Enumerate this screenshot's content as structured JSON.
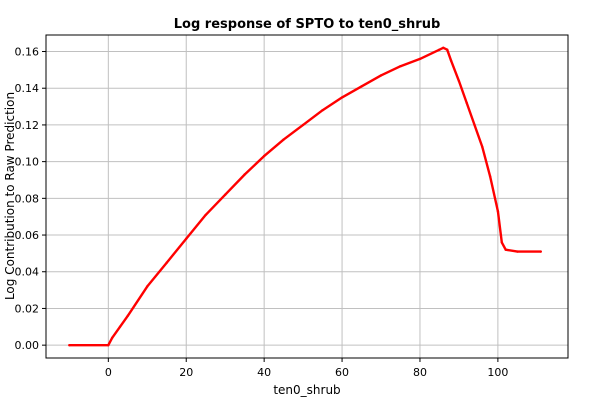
{
  "chart_data": {
    "type": "line",
    "title": "Log response of SPTO to ten0_shrub",
    "xlabel": "ten0_shrub",
    "ylabel": "Log Contribution to Raw Prediction",
    "xlim": [
      -16,
      118
    ],
    "ylim": [
      -0.007,
      0.169
    ],
    "xticks": [
      0,
      20,
      40,
      60,
      80,
      100
    ],
    "yticks": [
      0.0,
      0.02,
      0.04,
      0.06,
      0.08,
      0.1,
      0.12,
      0.14,
      0.16
    ],
    "grid": true,
    "legend": "none",
    "series": [
      {
        "color": "#ff0000",
        "points": [
          [
            -10,
            0.0
          ],
          [
            0,
            0.0
          ],
          [
            1,
            0.004
          ],
          [
            3,
            0.01
          ],
          [
            5,
            0.016
          ],
          [
            10,
            0.032
          ],
          [
            15,
            0.045
          ],
          [
            20,
            0.058
          ],
          [
            25,
            0.071
          ],
          [
            30,
            0.082
          ],
          [
            35,
            0.093
          ],
          [
            40,
            0.103
          ],
          [
            45,
            0.112
          ],
          [
            50,
            0.12
          ],
          [
            55,
            0.128
          ],
          [
            60,
            0.135
          ],
          [
            65,
            0.141
          ],
          [
            70,
            0.147
          ],
          [
            75,
            0.152
          ],
          [
            80,
            0.156
          ],
          [
            85,
            0.161
          ],
          [
            86,
            0.162
          ],
          [
            87,
            0.161
          ],
          [
            88,
            0.155
          ],
          [
            90,
            0.144
          ],
          [
            92,
            0.132
          ],
          [
            94,
            0.12
          ],
          [
            96,
            0.108
          ],
          [
            98,
            0.092
          ],
          [
            100,
            0.073
          ],
          [
            101,
            0.056
          ],
          [
            102,
            0.052
          ],
          [
            105,
            0.051
          ],
          [
            111,
            0.051
          ]
        ]
      }
    ]
  }
}
